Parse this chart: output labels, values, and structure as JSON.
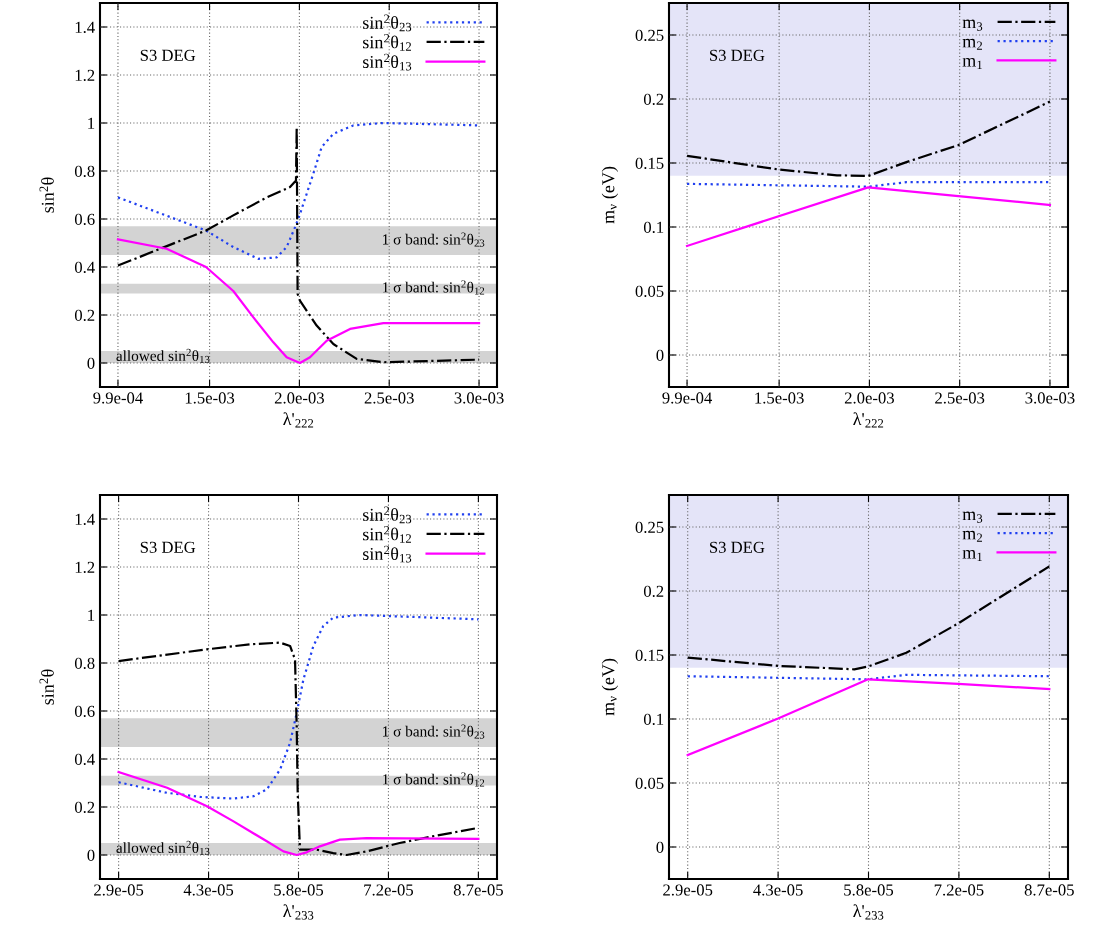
{
  "chart_data": [
    {
      "type": "line",
      "xlabel": "λ'$_{222}$",
      "ylabel": "sin$^{2}$θ",
      "xlim": [
        0.00089,
        0.0031
      ],
      "ylim": [
        -0.1,
        1.5
      ],
      "xticks": [
        {
          "value": 0.00099,
          "label": "9.9e-04"
        },
        {
          "value": 0.0015,
          "label": "1.5e-03"
        },
        {
          "value": 0.002,
          "label": "2.0e-03"
        },
        {
          "value": 0.0025,
          "label": "2.5e-03"
        },
        {
          "value": 0.003,
          "label": "3.0e-03"
        }
      ],
      "yticks": [
        0,
        0.2,
        0.4,
        0.6,
        0.8,
        1,
        1.2,
        1.4
      ],
      "grid": true,
      "legend": "top right",
      "bands": [
        {
          "axis": "y",
          "from": 0.45,
          "to": 0.57,
          "color": "#d3d3d3",
          "label": "1 σ band: sin$^{2}$θ$_{23}$"
        },
        {
          "axis": "y",
          "from": 0.29,
          "to": 0.33,
          "color": "#d3d3d3",
          "label": "1 σ band: sin$^{2}$θ$_{12}$"
        },
        {
          "axis": "y",
          "from": 0,
          "to": 0.05,
          "color": "#d3d3d3",
          "label": "allowed sin$^{2}$θ$_{13}$"
        }
      ],
      "annotations": [
        "S3 DEG"
      ],
      "series": [
        {
          "name": "sin$^{2}$θ$_{23}$",
          "color": "#2040f0",
          "line_style": "dotted",
          "x": [
            0.00099,
            0.00148,
            0.001632,
            0.001771,
            0.001873,
            0.001929,
            0.001976,
            0.002003,
            0.002078,
            0.002124,
            0.002189,
            0.0023,
            0.002467,
            0.003
          ],
          "values": [
            0.69,
            0.552,
            0.483,
            0.434,
            0.44,
            0.483,
            0.566,
            0.62,
            0.79,
            0.9,
            0.955,
            0.99,
            1.0,
            0.99
          ]
        },
        {
          "name": "sin$^{2}$θ$_{12}$",
          "color": "#000000",
          "line_style": "dashdot",
          "x": [
            0.00099,
            0.00148,
            0.001632,
            0.001818,
            0.001948,
            0.001981,
            0.001985,
            0.00199,
            0.002003,
            0.002096,
            0.002189,
            0.002319,
            0.002467,
            0.003
          ],
          "values": [
            0.406,
            0.552,
            0.615,
            0.69,
            0.733,
            0.76,
            0.983,
            0.288,
            0.26,
            0.156,
            0.079,
            0.017,
            0.003,
            0.014
          ]
        },
        {
          "name": "sin$^{2}$θ$_{13}$",
          "color": "#ff00ff",
          "line_style": "solid",
          "x": [
            0.00099,
            0.001261,
            0.00148,
            0.001632,
            0.001744,
            0.001855,
            0.001929,
            0.002003,
            0.002059,
            0.002152,
            0.002282,
            0.002467,
            0.003
          ],
          "values": [
            0.515,
            0.476,
            0.4,
            0.3,
            0.19,
            0.086,
            0.024,
            0,
            0.024,
            0.093,
            0.142,
            0.166,
            0.166
          ]
        }
      ]
    },
    {
      "type": "line",
      "xlabel": "λ'$_{222}$",
      "ylabel": "m$_{ν}$ (eV)",
      "xlim": [
        0.00089,
        0.0031
      ],
      "ylim": [
        -0.025,
        0.275
      ],
      "xticks": [
        {
          "value": 0.00099,
          "label": "9.9e-04"
        },
        {
          "value": 0.0015,
          "label": "1.5e-03"
        },
        {
          "value": 0.002,
          "label": "2.0e-03"
        },
        {
          "value": 0.0025,
          "label": "2.5e-03"
        },
        {
          "value": 0.003,
          "label": "3.0e-03"
        }
      ],
      "yticks": [
        0,
        0.05,
        0.1,
        0.15,
        0.2,
        0.25
      ],
      "grid": true,
      "legend": "top right",
      "bands": [
        {
          "axis": "y",
          "from": 0.14,
          "to": 0.275,
          "color": "#e4e4f8"
        }
      ],
      "annotations": [
        "S3 DEG"
      ],
      "series": [
        {
          "name": "m$_{3}$",
          "color": "#000000",
          "line_style": "dashdot",
          "x": [
            0.00099,
            0.001492,
            0.00182,
            0.001993,
            0.002205,
            0.002493,
            0.003
          ],
          "values": [
            0.1556,
            0.145,
            0.1404,
            0.1399,
            0.1507,
            0.164,
            0.198
          ]
        },
        {
          "name": "m$_{2}$",
          "color": "#2040f0",
          "line_style": "dotted",
          "x": [
            0.00099,
            0.001993,
            0.002205,
            0.003
          ],
          "values": [
            0.1337,
            0.1315,
            0.135,
            0.135
          ]
        },
        {
          "name": "m$_{1}$",
          "color": "#ff00ff",
          "line_style": "solid",
          "x": [
            0.00099,
            0.001993,
            0.002493,
            0.003
          ],
          "values": [
            0.0852,
            0.131,
            0.1242,
            0.1172
          ]
        }
      ]
    },
    {
      "type": "line",
      "xlabel": "λ'$_{233}$",
      "ylabel": "sin$^{2}$θ",
      "xlim": [
        2.6e-05,
        9e-05
      ],
      "ylim": [
        -0.1,
        1.5
      ],
      "xticks": [
        {
          "value": 2.9e-05,
          "label": "2.9e-05"
        },
        {
          "value": 4.35e-05,
          "label": "4.3e-05"
        },
        {
          "value": 5.8e-05,
          "label": "5.8e-05"
        },
        {
          "value": 7.25e-05,
          "label": "7.2e-05"
        },
        {
          "value": 8.7e-05,
          "label": "8.7e-05"
        }
      ],
      "yticks": [
        0,
        0.2,
        0.4,
        0.6,
        0.8,
        1,
        1.2,
        1.4
      ],
      "grid": true,
      "legend": "top right",
      "bands": [
        {
          "axis": "y",
          "from": 0.45,
          "to": 0.57,
          "color": "#d3d3d3",
          "label": "1 σ band: sin$^{2}$θ$_{23}$"
        },
        {
          "axis": "y",
          "from": 0.29,
          "to": 0.33,
          "color": "#d3d3d3",
          "label": "1 σ band: sin$^{2}$θ$_{12}$"
        },
        {
          "axis": "y",
          "from": 0,
          "to": 0.05,
          "color": "#d3d3d3",
          "label": "allowed sin$^{2}$θ$_{13}$"
        }
      ],
      "annotations": [
        "S3 DEG"
      ],
      "series": [
        {
          "name": "sin$^{2}$θ$_{23}$",
          "color": "#2040f0",
          "line_style": "dotted",
          "x": [
            2.9e-05,
            3.682e-05,
            4.218e-05,
            4.753e-05,
            5.075e-05,
            5.289e-05,
            5.503e-05,
            5.664e-05,
            5.771e-05,
            5.878e-05,
            6.039e-05,
            6.199e-05,
            6.36e-05,
            6.788e-05,
            8.7e-05
          ],
          "values": [
            0.303,
            0.259,
            0.242,
            0.235,
            0.245,
            0.273,
            0.356,
            0.467,
            0.592,
            0.73,
            0.87,
            0.954,
            0.989,
            1.0,
            0.982
          ]
        },
        {
          "name": "sin$^{2}$θ$_{12}$",
          "color": "#000000",
          "line_style": "dashdot",
          "x": [
            2.9e-05,
            4.325e-05,
            5.021e-05,
            5.503e-05,
            5.664e-05,
            5.744e-05,
            5.771e-05,
            5.787e-05,
            5.824e-05,
            6.092e-05,
            6.36e-05,
            6.574e-05,
            6.896e-05,
            7.431e-05,
            7.967e-05,
            8.7e-05
          ],
          "values": [
            0.808,
            0.857,
            0.878,
            0.885,
            0.871,
            0.815,
            0.537,
            0.259,
            0.022,
            0.022,
            0.008,
            0,
            0.015,
            0.05,
            0.078,
            0.113
          ]
        },
        {
          "name": "sin$^{2}$θ$_{13}$",
          "color": "#ff00ff",
          "line_style": "solid",
          "x": [
            2.9e-05,
            3.682e-05,
            4.325e-05,
            4.753e-05,
            5.289e-05,
            5.557e-05,
            5.771e-05,
            5.931e-05,
            6.146e-05,
            6.467e-05,
            6.896e-05,
            8.7e-05
          ],
          "values": [
            0.346,
            0.28,
            0.203,
            0.14,
            0.057,
            0.015,
            0,
            0.011,
            0.036,
            0.064,
            0.07,
            0.067
          ]
        }
      ]
    },
    {
      "type": "line",
      "xlabel": "λ'$_{233}$",
      "ylabel": "m$_{ν}$ (eV)",
      "xlim": [
        2.6e-05,
        9e-05
      ],
      "ylim": [
        -0.025,
        0.275
      ],
      "xticks": [
        {
          "value": 2.9e-05,
          "label": "2.9e-05"
        },
        {
          "value": 4.35e-05,
          "label": "4.3e-05"
        },
        {
          "value": 5.8e-05,
          "label": "5.8e-05"
        },
        {
          "value": 7.25e-05,
          "label": "7.2e-05"
        },
        {
          "value": 8.7e-05,
          "label": "8.7e-05"
        }
      ],
      "yticks": [
        0,
        0.05,
        0.1,
        0.15,
        0.2,
        0.25
      ],
      "grid": true,
      "legend": "top right",
      "bands": [
        {
          "axis": "y",
          "from": 0.14,
          "to": 0.275,
          "color": "#e4e4f8"
        }
      ],
      "annotations": [
        "S3 DEG"
      ],
      "series": [
        {
          "name": "m$_{3}$",
          "color": "#000000",
          "line_style": "dashdot",
          "x": [
            2.9e-05,
            4.35e-05,
            5.572e-05,
            5.794e-05,
            6.406e-05,
            7.239e-05,
            8.7e-05
          ],
          "values": [
            0.148,
            0.1415,
            0.1388,
            0.141,
            0.1517,
            0.1747,
            0.2192
          ]
        },
        {
          "name": "m$_{2}$",
          "color": "#2040f0",
          "line_style": "dotted",
          "x": [
            2.9e-05,
            5.794e-05,
            6.406e-05,
            8.7e-05
          ],
          "values": [
            0.1334,
            0.131,
            0.1345,
            0.1334
          ]
        },
        {
          "name": "m$_{1}$",
          "color": "#ff00ff",
          "line_style": "solid",
          "x": [
            2.9e-05,
            4.35e-05,
            5.794e-05,
            7.239e-05,
            8.7e-05
          ],
          "values": [
            0.0718,
            0.1004,
            0.131,
            0.1274,
            0.1234
          ]
        }
      ]
    }
  ]
}
